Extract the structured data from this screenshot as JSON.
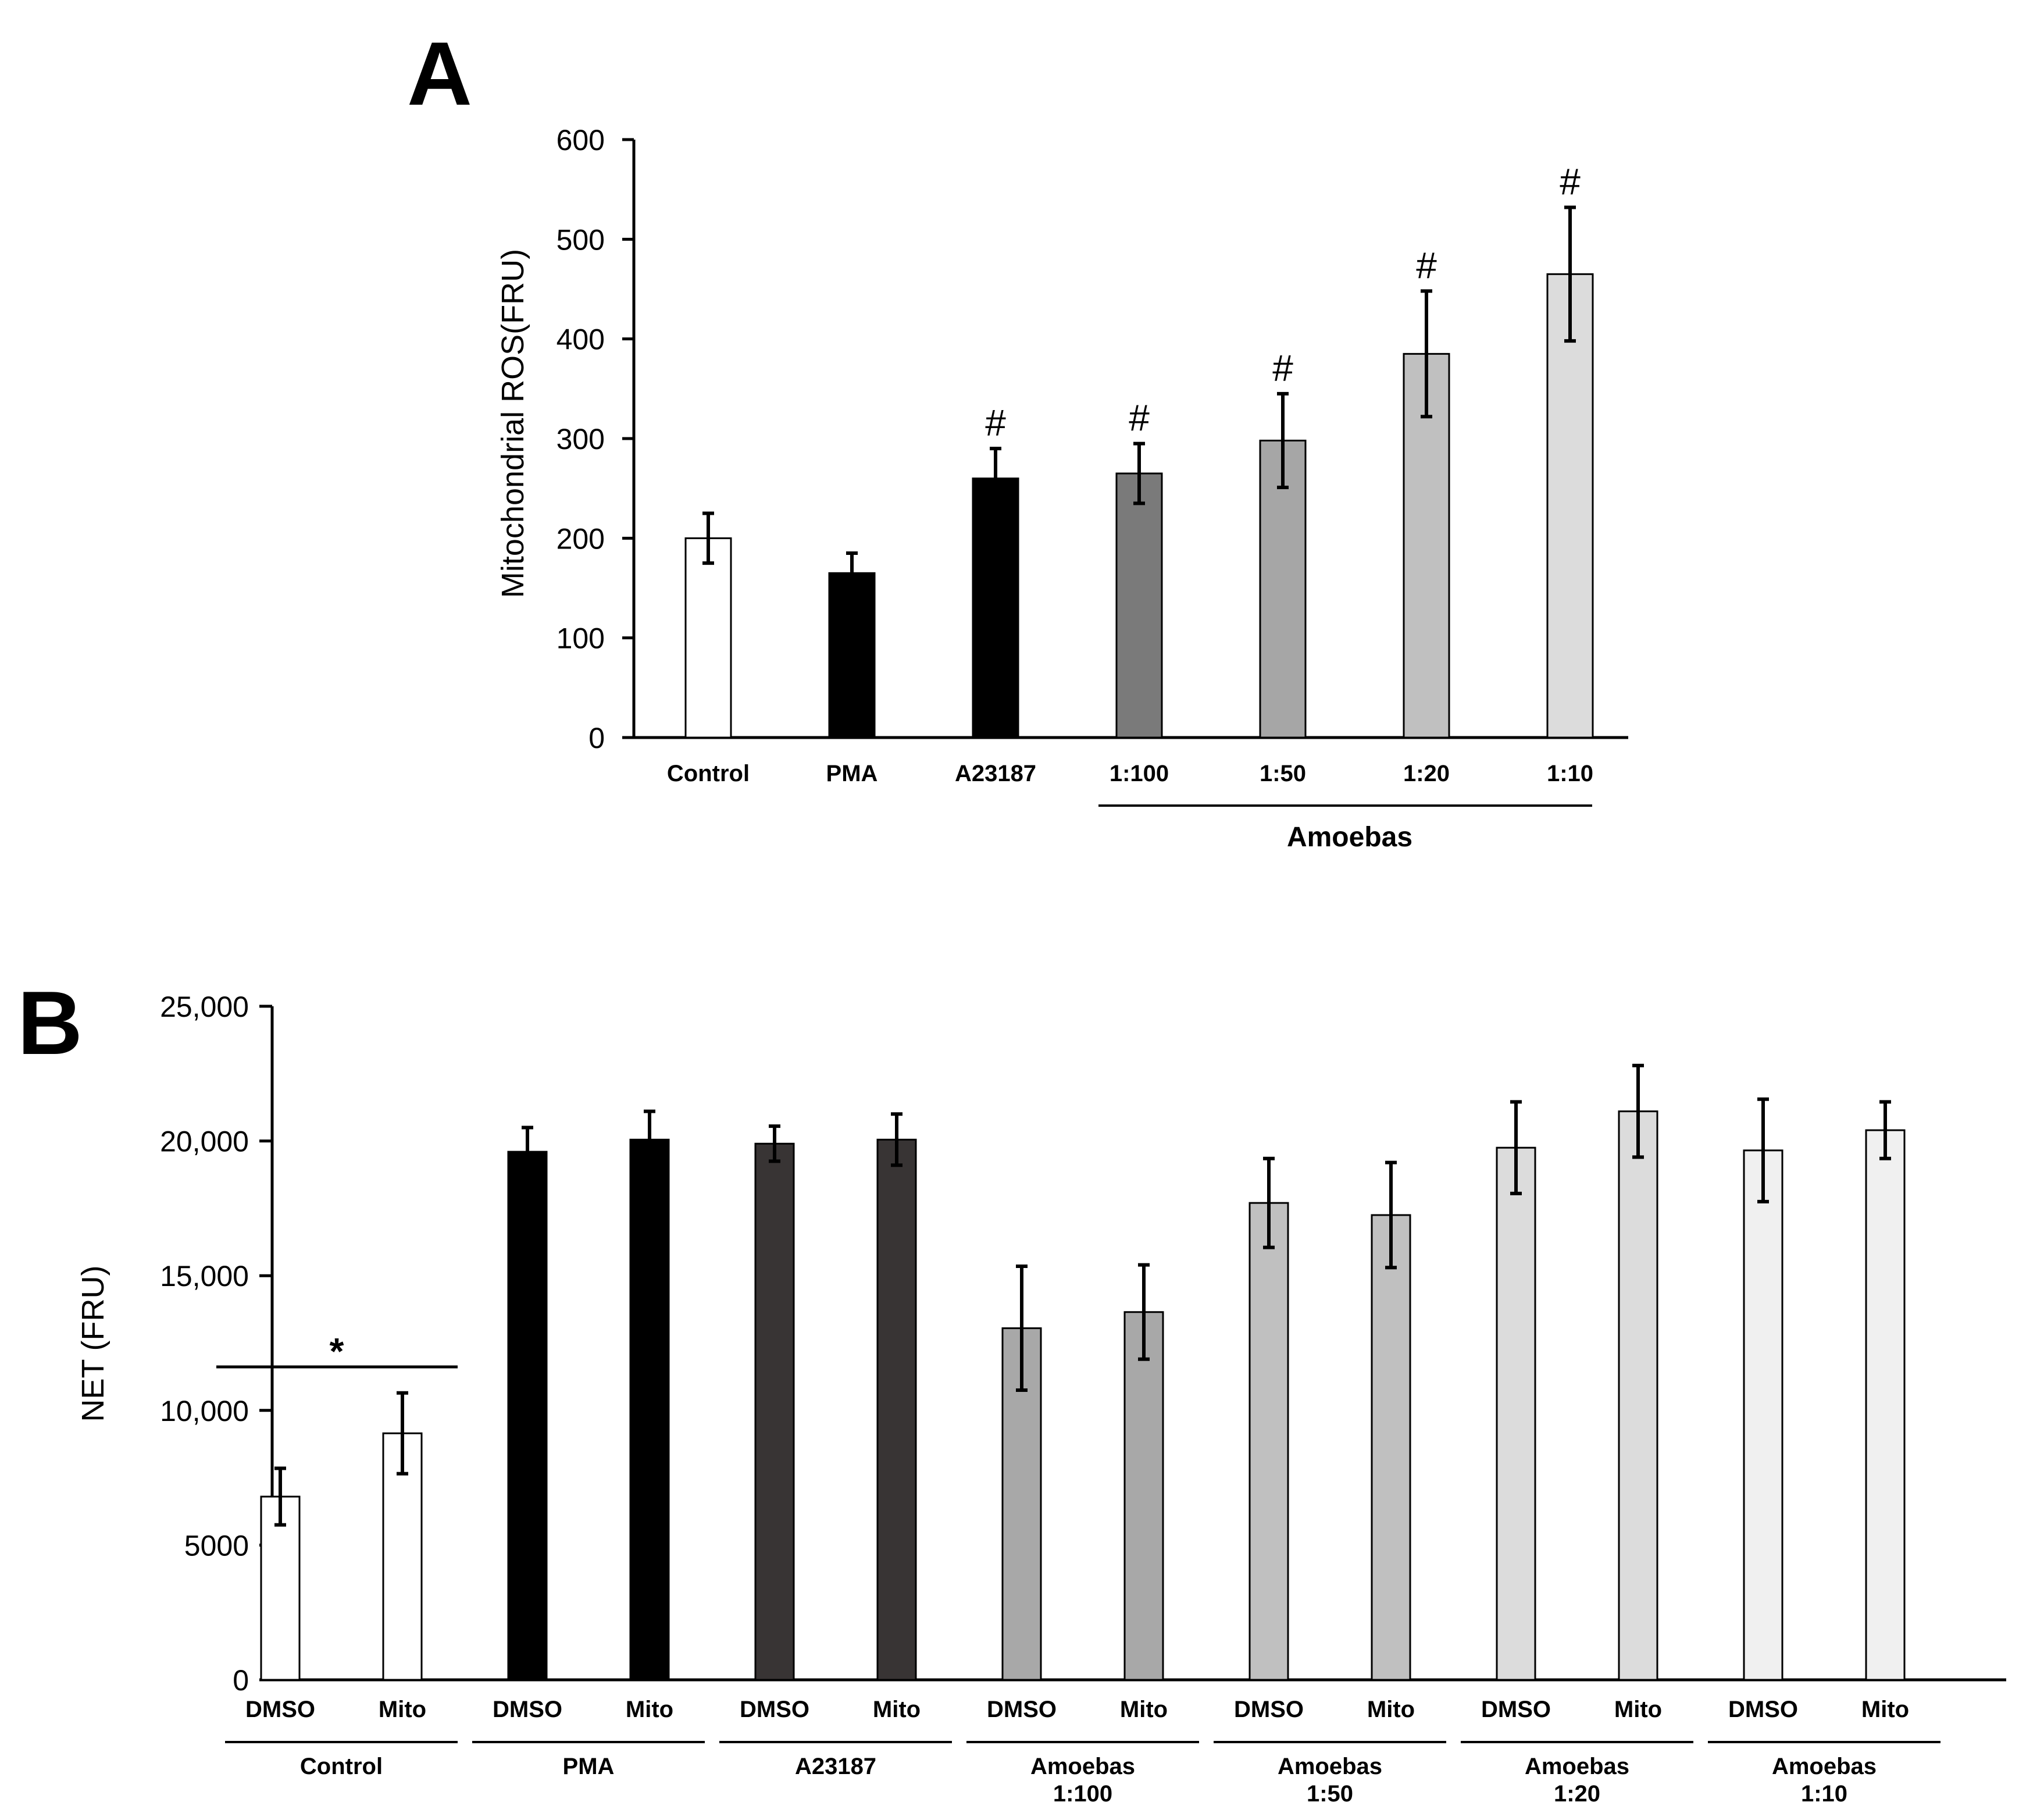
{
  "chart_data": [
    {
      "type": "bar",
      "panel": "A",
      "ylabel": "Mitochondrial ROS(FRU)",
      "ylim": [
        0,
        600
      ],
      "yticks": [
        0,
        100,
        200,
        300,
        400,
        500,
        600
      ],
      "ytick_labels": [
        "0",
        "100",
        "200",
        "300",
        "400",
        "500",
        "600"
      ],
      "categories": [
        "Control",
        "PMA",
        "A23187",
        "1:100",
        "1:50",
        "1:20",
        "1:10"
      ],
      "values": [
        200,
        165,
        260,
        265,
        298,
        385,
        465
      ],
      "errors": [
        25,
        20,
        30,
        30,
        47,
        63,
        67
      ],
      "colors": [
        "#ffffff",
        "#000000",
        "#000000",
        "#7a7a7a",
        "#a6a6a6",
        "#c0c0c0",
        "#dcdcdc"
      ],
      "significance": [
        "",
        "",
        "#",
        "#",
        "#",
        "#",
        "#"
      ],
      "group_label": "Amoebas",
      "group_span": [
        3,
        6
      ]
    },
    {
      "type": "bar",
      "panel": "B",
      "ylabel": "NET (FRU)",
      "ylim": [
        0,
        25000
      ],
      "yticks": [
        0,
        5000,
        10000,
        15000,
        20000,
        25000
      ],
      "ytick_labels": [
        "0",
        "5000",
        "10,000",
        "15,000",
        "20,000",
        "25,000"
      ],
      "series": [
        {
          "name": "DMSO",
          "values": [
            6800,
            19600,
            19900,
            13050,
            17700,
            19750,
            19650
          ],
          "errors": [
            1050,
            900,
            650,
            2300,
            1650,
            1700,
            1900
          ]
        },
        {
          "name": "Mito",
          "values": [
            9150,
            20050,
            20050,
            13650,
            17250,
            21100,
            20400
          ],
          "errors": [
            1500,
            1050,
            950,
            1750,
            1950,
            1700,
            1050
          ]
        }
      ],
      "groups": [
        {
          "label": "Control",
          "label2": "",
          "color": "#ffffff"
        },
        {
          "label": "PMA",
          "label2": "",
          "color": "#000000"
        },
        {
          "label": "A23187",
          "label2": "",
          "color": "#383434"
        },
        {
          "label": "Amoebas",
          "label2": "1:100",
          "color": "#a8a8a8"
        },
        {
          "label": "Amoebas",
          "label2": "1:50",
          "color": "#c0c0c0"
        },
        {
          "label": "Amoebas",
          "label2": "1:20",
          "color": "#dcdcdc"
        },
        {
          "label": "Amoebas",
          "label2": "1:10",
          "color": "#f0f0f0"
        }
      ],
      "significance_label": "*",
      "significance_group": 0
    }
  ]
}
